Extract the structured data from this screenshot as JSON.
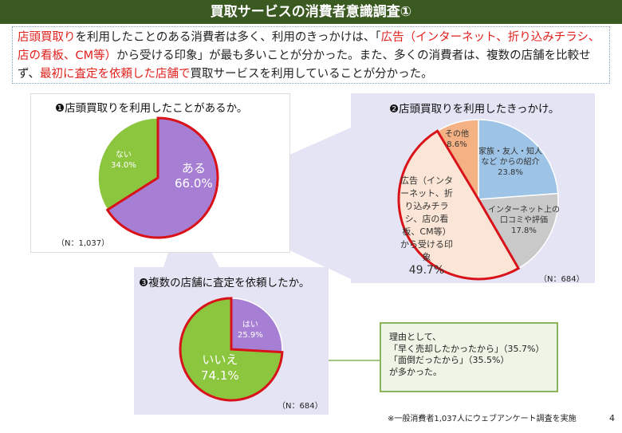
{
  "title": "買取サービスの消費者意識調査①",
  "summary": {
    "parts": [
      {
        "text": "店頭買取り",
        "highlight": true
      },
      {
        "text": "を利用したことのある消費者は多く、利用のきっかけは、「",
        "highlight": false
      },
      {
        "text": "広告（インターネット、折り込みチラシ、店の看板、CM等）",
        "highlight": true
      },
      {
        "text": "から受ける印象」が最も多いことが分かった。また、多くの消費者は、複数の店舗を比較せず、",
        "highlight": false
      },
      {
        "text": "最初に査定を依頼した店舗で",
        "highlight": true
      },
      {
        "text": "買取サービスを利用していることが分かった。",
        "highlight": false
      }
    ]
  },
  "charts": {
    "q1": {
      "title": "❶店頭買取りを利用したことがあるか。",
      "n": "（N：1,037）",
      "slices": [
        {
          "label": "ある",
          "pct_text": "66.0%",
          "value": 66.0,
          "color": "#a67fd4",
          "highlight": true
        },
        {
          "label": "ない",
          "pct_text": "34.0%",
          "value": 34.0,
          "color": "#8cc63f",
          "highlight": false
        }
      ]
    },
    "q2": {
      "title": "❷店頭買取りを利用したきっかけ。",
      "n": "（N：684）",
      "slices": [
        {
          "label": "家族・友人・知人など からの紹介",
          "pct_text": "23.8%",
          "value": 23.8,
          "color": "#9dc3e6",
          "highlight": false
        },
        {
          "label": "インターネット上の口コミや評価",
          "pct_text": "17.8%",
          "value": 17.8,
          "color": "#c9c9c9",
          "highlight": false
        },
        {
          "label": "広告（インターネット、折り込みチラシ、店の看板、CM等）から受ける印象",
          "pct_text": "49.7%",
          "value": 49.7,
          "color": "#fbe5d6",
          "highlight": true
        },
        {
          "label": "その他",
          "pct_text": "8.6%",
          "value": 8.6,
          "color": "#f4b183",
          "highlight": false
        }
      ]
    },
    "q3": {
      "title": "❸複数の店舗に査定を依頼したか。",
      "n": "（N：684）",
      "slices": [
        {
          "label": "はい",
          "pct_text": "25.9%",
          "value": 25.9,
          "color": "#a67fd4",
          "highlight": false
        },
        {
          "label": "いいえ",
          "pct_text": "74.1%",
          "value": 74.1,
          "color": "#8cc63f",
          "highlight": true
        }
      ]
    }
  },
  "reason": {
    "lines": [
      "理由として、",
      "「早く売却したかったから」（35.7%）",
      "「面倒だったから」（35.5%）",
      "が多かった。"
    ]
  },
  "footnote": "※一般消費者1,037人にウェブアンケート調査を実施",
  "page_number": "4",
  "colors": {
    "title_bg": "#3b5a22",
    "highlight_text": "#e0201c",
    "highlight_border": "#d9121a",
    "panel_bg": "#e4e4f4"
  }
}
